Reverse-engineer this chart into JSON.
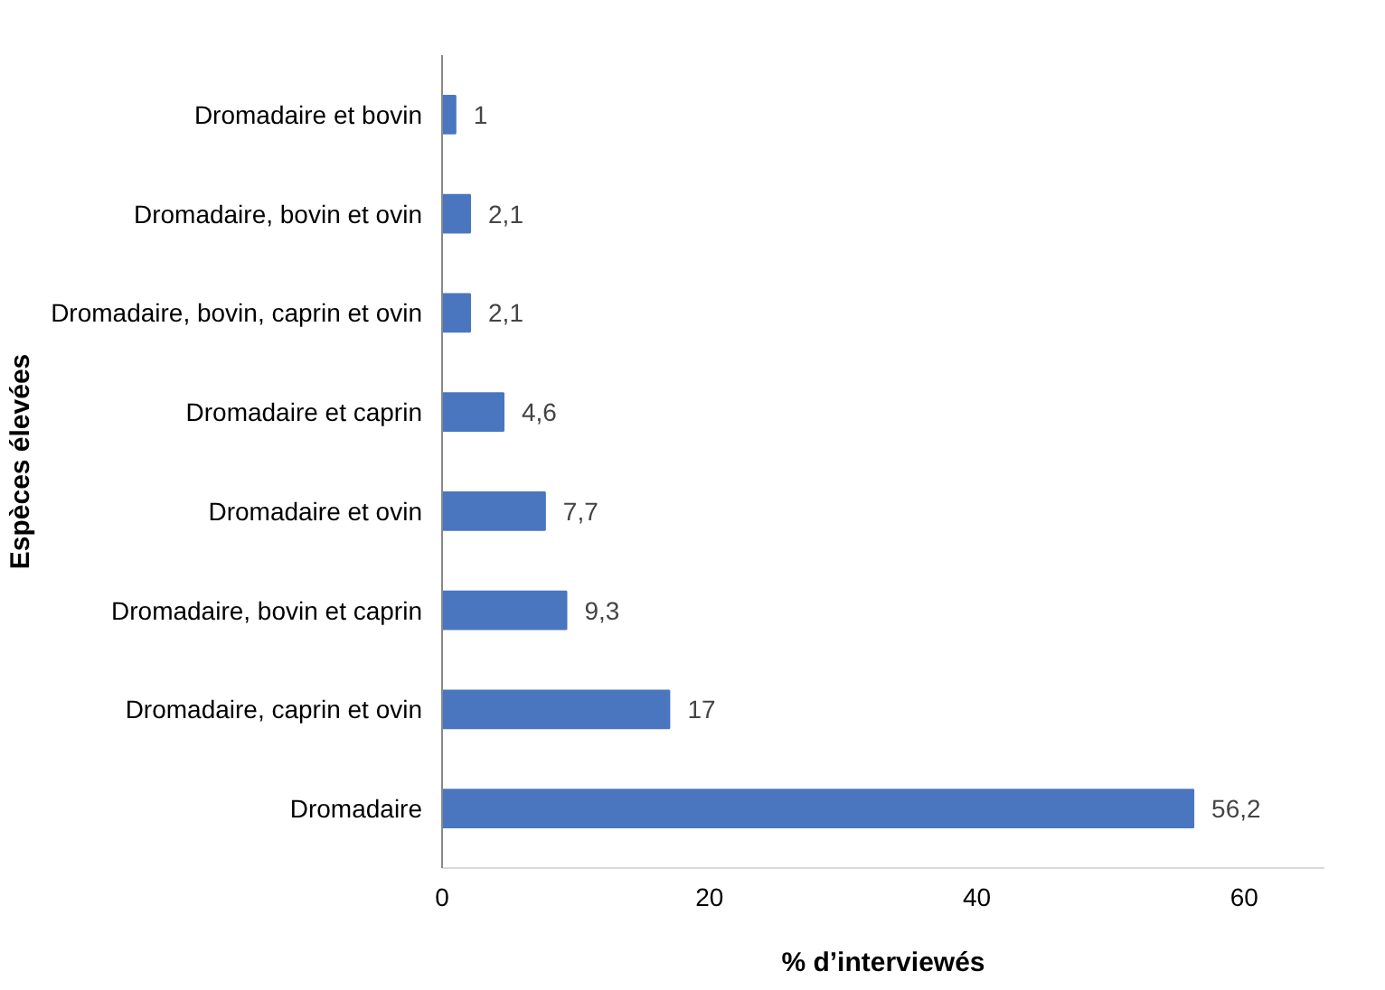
{
  "chart_data": {
    "type": "bar",
    "orientation": "horizontal",
    "xlabel": "% d’interviewés",
    "ylabel": "Espèces élevées",
    "categories": [
      "Dromadaire et bovin",
      "Dromadaire, bovin et ovin",
      "Dromadaire, bovin, caprin et ovin",
      "Dromadaire et caprin",
      "Dromadaire et ovin",
      "Dromadaire, bovin et caprin",
      "Dromadaire, caprin et ovin",
      "Dromadaire"
    ],
    "values": [
      1,
      2.1,
      2.1,
      4.6,
      7.7,
      9.3,
      17,
      56.2
    ],
    "value_labels": [
      "1",
      "2,1",
      "2,1",
      "4,6",
      "7,7",
      "9,3",
      "17",
      "56,2"
    ],
    "color": "#4a76c0",
    "xlim": [
      0,
      66
    ],
    "xticks": [
      0,
      20,
      40,
      60
    ],
    "grid": false
  }
}
